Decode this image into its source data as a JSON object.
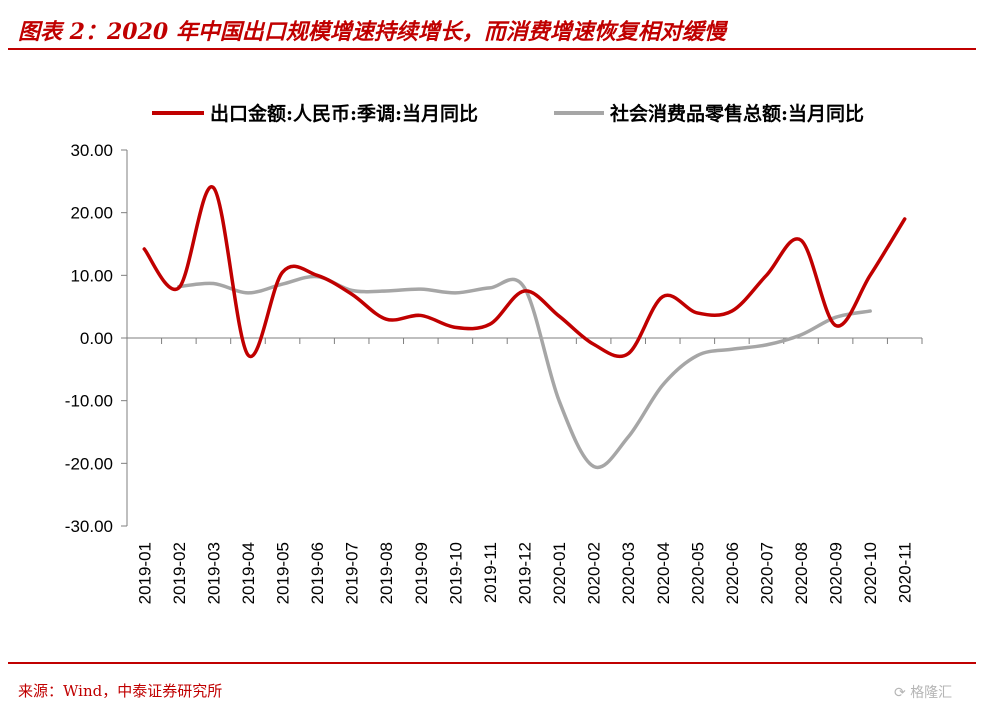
{
  "header": {
    "title": "图表 2：2020 年中国出口规模增速持续增长，而消费增速恢复相对缓慢"
  },
  "footer": {
    "source": "来源：Wind，中泰证券研究所"
  },
  "watermark": {
    "text": "格隆汇"
  },
  "chart_data": {
    "type": "line",
    "title": "",
    "xlabel": "",
    "ylabel": "",
    "ylim": [
      -30,
      30
    ],
    "yticks": [
      "30.00",
      "20.00",
      "10.00",
      "0.00",
      "-10.00",
      "-20.00",
      "-30.00"
    ],
    "grid": false,
    "legend_position": "top",
    "categories": [
      "2019-01",
      "2019-02",
      "2019-03",
      "2019-04",
      "2019-05",
      "2019-06",
      "2019-07",
      "2019-08",
      "2019-09",
      "2019-10",
      "2019-11",
      "2019-12",
      "2020-01",
      "2020-02",
      "2020-03",
      "2020-04",
      "2020-05",
      "2020-06",
      "2020-07",
      "2020-08",
      "2020-09",
      "2020-10",
      "2020-11"
    ],
    "series": [
      {
        "name": "出口金额:人民币:季调:当月同比",
        "color": "#c00000",
        "values": [
          14.2,
          8.0,
          24.0,
          -2.7,
          10.5,
          10.0,
          7.0,
          3.0,
          3.6,
          1.7,
          2.2,
          7.5,
          3.5,
          -1.0,
          -2.5,
          6.6,
          4.0,
          4.3,
          10.0,
          15.6,
          2.0,
          10.0,
          19.0
        ]
      },
      {
        "name": "社会消费品零售总额:当月同比",
        "color": "#a6a6a6",
        "values": [
          null,
          8.2,
          8.7,
          7.2,
          8.6,
          9.8,
          7.6,
          7.5,
          7.8,
          7.2,
          8.0,
          8.0,
          -10.0,
          -20.5,
          -15.8,
          -7.5,
          -2.8,
          -1.8,
          -1.1,
          0.5,
          3.3,
          4.3,
          null
        ]
      }
    ]
  }
}
